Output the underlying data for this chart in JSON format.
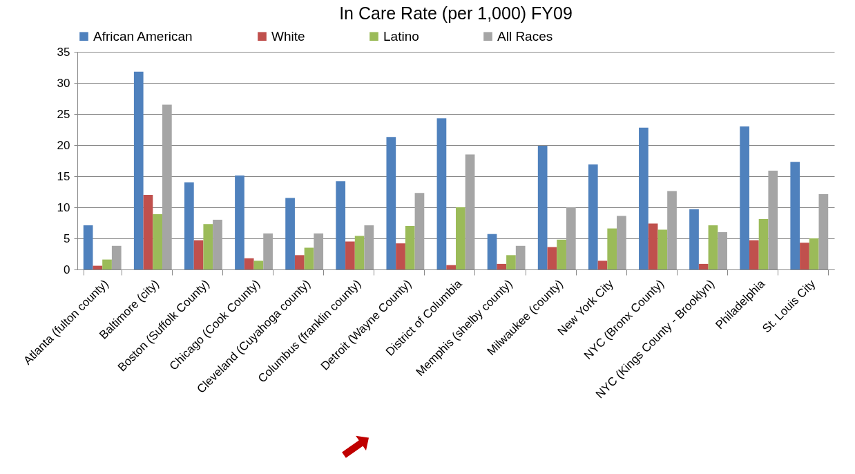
{
  "chart_data": {
    "type": "bar",
    "title": "In Care Rate (per 1,000) FY09",
    "categories": [
      "Atlanta (fulton county)",
      "Baltimore (city)",
      "Boston (Suffolk County)",
      "Chicago (Cook County)",
      "Cleveland (Cuyahoga county)",
      "Columbus (franklin county)",
      "Detroit (Wayne County)",
      "District of Columbia",
      "Memphis (shelby county)",
      "Milwaukee (county)",
      "New York City",
      "NYC (Bronx County)",
      "NYC (Kings County - Brooklyn)",
      "Philadelphia",
      "St. Louis City"
    ],
    "series": [
      {
        "name": "African American",
        "color": "#4f81bd",
        "values": [
          7.1,
          31.8,
          14.0,
          15.1,
          11.5,
          14.2,
          21.3,
          24.3,
          5.7,
          19.9,
          16.9,
          22.8,
          9.7,
          23.0,
          17.3
        ]
      },
      {
        "name": "White",
        "color": "#c0504d",
        "values": [
          0.6,
          12.0,
          4.7,
          1.8,
          2.3,
          4.5,
          4.2,
          0.7,
          0.9,
          3.6,
          1.4,
          7.4,
          0.9,
          4.7,
          4.3
        ]
      },
      {
        "name": "Latino",
        "color": "#9bbb59",
        "values": [
          1.6,
          8.9,
          7.3,
          1.4,
          3.5,
          5.4,
          7.0,
          10.0,
          2.3,
          4.8,
          6.6,
          6.4,
          7.1,
          8.1,
          5.0
        ]
      },
      {
        "name": "All Races",
        "color": "#a5a5a5",
        "values": [
          3.8,
          26.5,
          8.0,
          5.8,
          5.8,
          7.1,
          12.3,
          18.5,
          3.8,
          10.0,
          8.6,
          12.6,
          6.0,
          15.9,
          12.1
        ]
      }
    ],
    "ylim": [
      0,
      35
    ],
    "yticks": [
      0,
      5,
      10,
      15,
      20,
      25,
      30,
      35
    ],
    "grid": "y",
    "legend": "top"
  }
}
